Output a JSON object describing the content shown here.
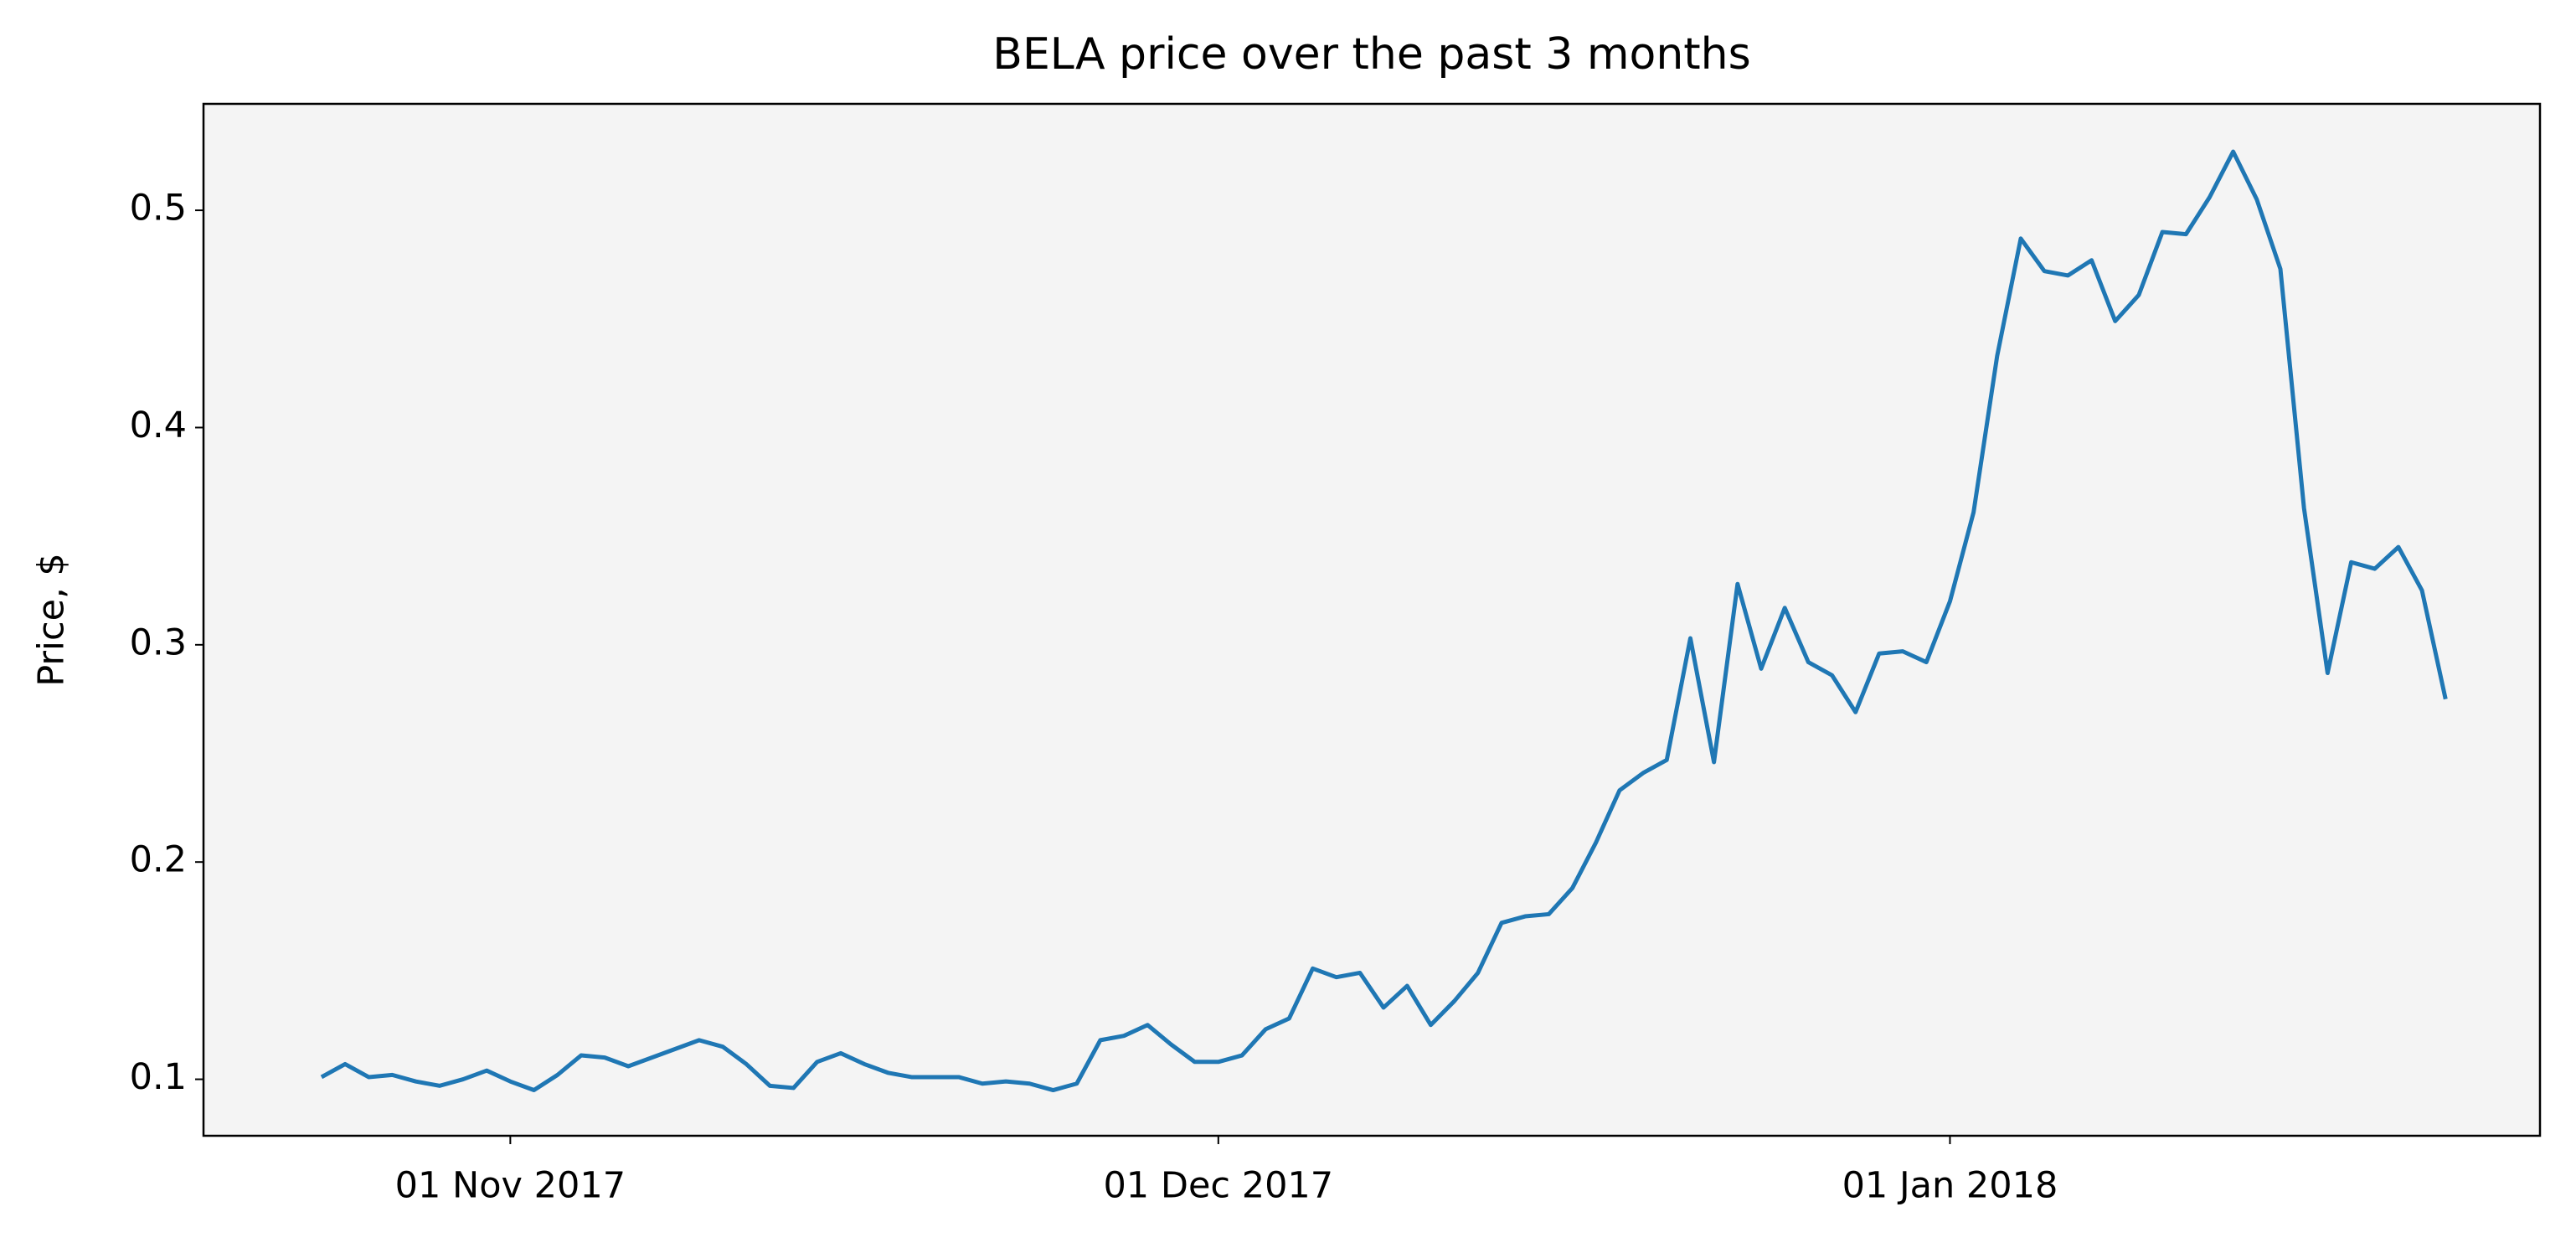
{
  "chart_data": {
    "type": "line",
    "title": "BELA price over the past 3 months",
    "ylabel": "Price, $",
    "x": [
      "2017-10-24",
      "2017-10-25",
      "2017-10-26",
      "2017-10-27",
      "2017-10-28",
      "2017-10-29",
      "2017-10-30",
      "2017-10-31",
      "2017-11-01",
      "2017-11-02",
      "2017-11-03",
      "2017-11-04",
      "2017-11-05",
      "2017-11-06",
      "2017-11-07",
      "2017-11-08",
      "2017-11-09",
      "2017-11-10",
      "2017-11-11",
      "2017-11-12",
      "2017-11-13",
      "2017-11-14",
      "2017-11-15",
      "2017-11-16",
      "2017-11-17",
      "2017-11-18",
      "2017-11-19",
      "2017-11-20",
      "2017-11-21",
      "2017-11-22",
      "2017-11-23",
      "2017-11-24",
      "2017-11-25",
      "2017-11-26",
      "2017-11-27",
      "2017-11-28",
      "2017-11-29",
      "2017-11-30",
      "2017-12-01",
      "2017-12-02",
      "2017-12-03",
      "2017-12-04",
      "2017-12-05",
      "2017-12-06",
      "2017-12-07",
      "2017-12-08",
      "2017-12-09",
      "2017-12-10",
      "2017-12-11",
      "2017-12-12",
      "2017-12-13",
      "2017-12-14",
      "2017-12-15",
      "2017-12-16",
      "2017-12-17",
      "2017-12-18",
      "2017-12-19",
      "2017-12-20",
      "2017-12-21",
      "2017-12-22",
      "2017-12-23",
      "2017-12-24",
      "2017-12-25",
      "2017-12-26",
      "2017-12-27",
      "2017-12-28",
      "2017-12-29",
      "2017-12-30",
      "2017-12-31",
      "2018-01-01",
      "2018-01-02",
      "2018-01-03",
      "2018-01-04",
      "2018-01-05",
      "2018-01-06",
      "2018-01-07",
      "2018-01-08",
      "2018-01-09",
      "2018-01-10",
      "2018-01-11",
      "2018-01-12",
      "2018-01-13",
      "2018-01-14",
      "2018-01-15",
      "2018-01-16",
      "2018-01-17",
      "2018-01-18",
      "2018-01-19",
      "2018-01-20",
      "2018-01-21",
      "2018-01-22"
    ],
    "values": [
      0.101,
      0.107,
      0.101,
      0.102,
      0.099,
      0.097,
      0.1,
      0.104,
      0.099,
      0.095,
      0.102,
      0.111,
      0.11,
      0.106,
      0.11,
      0.114,
      0.118,
      0.115,
      0.107,
      0.097,
      0.096,
      0.108,
      0.112,
      0.107,
      0.103,
      0.101,
      0.101,
      0.101,
      0.098,
      0.099,
      0.098,
      0.095,
      0.098,
      0.118,
      0.12,
      0.125,
      0.116,
      0.108,
      0.108,
      0.111,
      0.123,
      0.128,
      0.151,
      0.147,
      0.149,
      0.133,
      0.143,
      0.125,
      0.136,
      0.149,
      0.172,
      0.175,
      0.176,
      0.188,
      0.209,
      0.233,
      0.241,
      0.247,
      0.303,
      0.246,
      0.328,
      0.289,
      0.317,
      0.292,
      0.286,
      0.269,
      0.296,
      0.297,
      0.292,
      0.32,
      0.361,
      0.433,
      0.487,
      0.472,
      0.47,
      0.477,
      0.449,
      0.461,
      0.49,
      0.489,
      0.506,
      0.527,
      0.505,
      0.473,
      0.363,
      0.287,
      0.338,
      0.335,
      0.345,
      0.325,
      0.275
    ],
    "color": "#1f77b4",
    "background": "#f4f4f4",
    "xlim": [
      "2017-10-19",
      "2018-01-26"
    ],
    "xticks": [
      {
        "value": "2017-11-01",
        "label": "01 Nov 2017"
      },
      {
        "value": "2017-12-01",
        "label": "01 Dec 2017"
      },
      {
        "value": "2018-01-01",
        "label": "01 Jan 2018"
      }
    ],
    "ylim": [
      0.074,
      0.549
    ],
    "yticks": [
      0.1,
      0.2,
      0.3,
      0.4,
      0.5
    ]
  }
}
